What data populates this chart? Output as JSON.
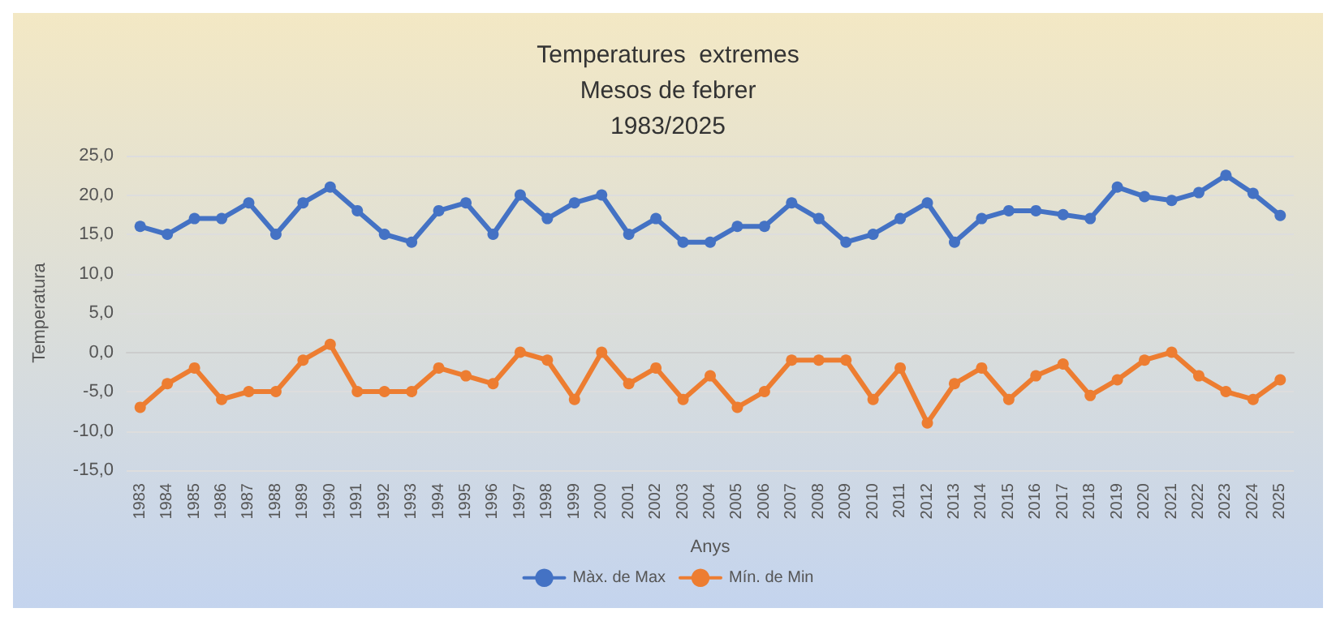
{
  "chart_data": {
    "type": "line",
    "title": "Temperatures  extremes\nMesos de febrer\n1983/2025",
    "xlabel": "Anys",
    "ylabel": "Temperatura",
    "categories": [
      "1983",
      "1984",
      "1985",
      "1986",
      "1987",
      "1988",
      "1989",
      "1990",
      "1991",
      "1992",
      "1993",
      "1994",
      "1995",
      "1996",
      "1997",
      "1998",
      "1999",
      "2000",
      "2001",
      "2002",
      "2003",
      "2004",
      "2005",
      "2006",
      "2007",
      "2008",
      "2009",
      "2010",
      "2011",
      "2012",
      "2013",
      "2014",
      "2015",
      "2016",
      "2017",
      "2018",
      "2019",
      "2020",
      "2021",
      "2022",
      "2023",
      "2024",
      "2025"
    ],
    "series": [
      {
        "name": "Màx. de Max",
        "color": "#4472c4",
        "values": [
          16,
          15,
          17,
          17,
          19,
          15,
          19,
          21,
          18,
          15,
          14,
          18,
          19,
          15,
          20,
          17,
          19,
          20,
          15,
          17,
          14,
          14,
          16,
          16,
          19,
          17,
          14,
          15,
          17,
          19,
          14,
          17,
          18,
          18,
          17.5,
          17,
          21,
          19.8,
          19.3,
          20.3,
          22.5,
          20.2,
          17.4
        ]
      },
      {
        "name": "Mín. de Min",
        "color": "#ed7d31",
        "values": [
          -7,
          -4,
          -2,
          -6,
          -5,
          -5,
          -1,
          1,
          -5,
          -5,
          -5,
          -2,
          -3,
          -4,
          0,
          -1,
          -6,
          0,
          -4,
          -2,
          -6,
          -3,
          -7,
          -5,
          -1,
          -1,
          -1,
          -6,
          -2,
          -9,
          -4,
          -2,
          -6,
          -3,
          -1.5,
          -5.5,
          -3.5,
          -1,
          0,
          -3,
          -5,
          -6,
          -3.5
        ]
      }
    ],
    "ylim": [
      -15,
      25
    ],
    "yticks": [
      {
        "value": -15,
        "label": "-15,0"
      },
      {
        "value": -10,
        "label": "-10,0"
      },
      {
        "value": -5,
        "label": "-5,0"
      },
      {
        "value": 0,
        "label": "0,0"
      },
      {
        "value": 5,
        "label": "5,0"
      },
      {
        "value": 10,
        "label": "10,0"
      },
      {
        "value": 15,
        "label": "15,0"
      },
      {
        "value": 20,
        "label": "20,0"
      },
      {
        "value": 25,
        "label": "25,0"
      }
    ],
    "grid": "y",
    "legend": "bottom",
    "marker": "circle",
    "line_style": "solid"
  }
}
